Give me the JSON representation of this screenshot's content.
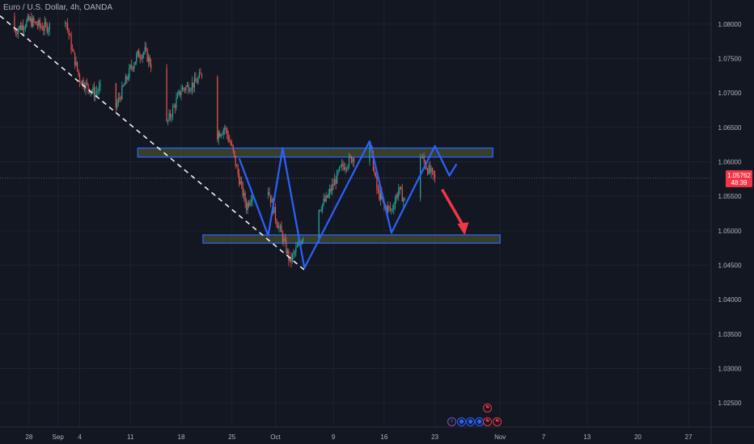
{
  "header": {
    "symbol_title": "Euro / U.S. Dollar, 4h, OANDA"
  },
  "price_axis": {
    "ticks": [
      "1.08000",
      "1.07500",
      "1.07000",
      "1.06500",
      "1.06000",
      "1.05500",
      "1.05000",
      "1.04500",
      "1.04000",
      "1.03500",
      "1.03000",
      "1.02500"
    ],
    "current_price": "1.05762",
    "countdown": "48:39",
    "current_price_color": "#f23645"
  },
  "time_axis": {
    "ticks": [
      "28",
      "Sep",
      "4",
      "11",
      "18",
      "25",
      "Oct",
      "9",
      "16",
      "23",
      "Nov",
      "7",
      "13",
      "20",
      "27"
    ]
  },
  "colors": {
    "background": "#131722",
    "up_candle": "#26a69a",
    "down_candle": "#ef5350",
    "pattern_line": "#2962ff",
    "zone_fill": "#3d4429",
    "zone_border": "#2962ff",
    "trendline": "#ffffff",
    "arrow": "#f23645"
  },
  "event_icons": [
    "lightning-icon",
    "globe-icon",
    "globe-icon",
    "globe-icon",
    "us-flag-icon",
    "us-flag-icon",
    "us-flag-icon"
  ],
  "chart_data": {
    "type": "candlestick",
    "title": "Euro / U.S. Dollar, 4h, OANDA",
    "symbol": "EURUSD",
    "timeframe": "4h",
    "source": "OANDA",
    "ylim": [
      1.0215,
      1.0835
    ],
    "y_ticks": [
      1.025,
      1.03,
      1.035,
      1.04,
      1.045,
      1.05,
      1.055,
      1.06,
      1.065,
      1.07,
      1.075,
      1.08
    ],
    "x_range": [
      "2024-08-24",
      "2024-11-30"
    ],
    "grid": true,
    "last_price": 1.05762,
    "price_path": [
      [
        "2024-08-24",
        1.0812
      ],
      [
        "2024-08-26",
        1.079
      ],
      [
        "2024-08-28",
        1.0805
      ],
      [
        "2024-08-30",
        1.0795
      ],
      [
        "2024-09-01",
        1.08
      ],
      [
        "2024-09-02",
        1.081
      ],
      [
        "2024-09-03",
        1.076
      ],
      [
        "2024-09-04",
        1.072
      ],
      [
        "2024-09-06",
        1.07
      ],
      [
        "2024-09-08",
        1.0715
      ],
      [
        "2024-09-09",
        1.068
      ],
      [
        "2024-09-11",
        1.0735
      ],
      [
        "2024-09-12",
        1.0755
      ],
      [
        "2024-09-13",
        1.076
      ],
      [
        "2024-09-15",
        1.0715
      ],
      [
        "2024-09-16",
        1.0655
      ],
      [
        "2024-09-18",
        1.0705
      ],
      [
        "2024-09-20",
        1.0715
      ],
      [
        "2024-09-21",
        1.073
      ],
      [
        "2024-09-22",
        1.066
      ],
      [
        "2024-09-23",
        1.064
      ],
      [
        "2024-09-24",
        1.065
      ],
      [
        "2024-09-25",
        1.062
      ],
      [
        "2024-09-26",
        1.0575
      ],
      [
        "2024-09-27",
        1.0535
      ],
      [
        "2024-09-28",
        1.056
      ],
      [
        "2024-09-29",
        1.0615
      ],
      [
        "2024-09-30",
        1.056
      ],
      [
        "2024-10-01",
        1.052
      ],
      [
        "2024-10-02",
        1.049
      ],
      [
        "2024-10-03",
        1.0455
      ],
      [
        "2024-10-04",
        1.0475
      ],
      [
        "2024-10-06",
        1.052
      ],
      [
        "2024-10-08",
        1.0545
      ],
      [
        "2024-10-10",
        1.059
      ],
      [
        "2024-10-12",
        1.061
      ],
      [
        "2024-10-14",
        1.0628
      ],
      [
        "2024-10-15",
        1.056
      ],
      [
        "2024-10-16",
        1.0535
      ],
      [
        "2024-10-17",
        1.053
      ],
      [
        "2024-10-18",
        1.056
      ],
      [
        "2024-10-19",
        1.054
      ],
      [
        "2024-10-20",
        1.0575
      ],
      [
        "2024-10-21",
        1.061
      ],
      [
        "2024-10-22",
        1.059
      ],
      [
        "2024-10-23",
        1.0576
      ]
    ],
    "annotations": {
      "resistance_zone": {
        "low": 1.0607,
        "high": 1.062,
        "from": "2024-09-12",
        "to": "2024-10-31"
      },
      "support_zone": {
        "low": 1.0482,
        "high": 1.0494,
        "from": "2024-09-21",
        "to": "2024-11-01"
      },
      "descending_trendline": [
        [
          "2024-08-24",
          1.0812
        ],
        [
          "2024-10-05",
          1.0443
        ]
      ],
      "pattern_zigzag": [
        [
          "2024-09-26",
          1.0605
        ],
        [
          "2024-09-30",
          1.0493
        ],
        [
          "2024-10-02",
          1.062
        ],
        [
          "2024-10-05",
          1.0446
        ],
        [
          "2024-10-14",
          1.063
        ],
        [
          "2024-10-17",
          1.0497
        ],
        [
          "2024-10-23",
          1.0623
        ],
        [
          "2024-10-25",
          1.058
        ],
        [
          "2024-10-26",
          1.0597
        ]
      ],
      "projected_arrow": [
        [
          "2024-10-24",
          1.056
        ],
        [
          "2024-10-27",
          1.0496
        ]
      ]
    }
  }
}
